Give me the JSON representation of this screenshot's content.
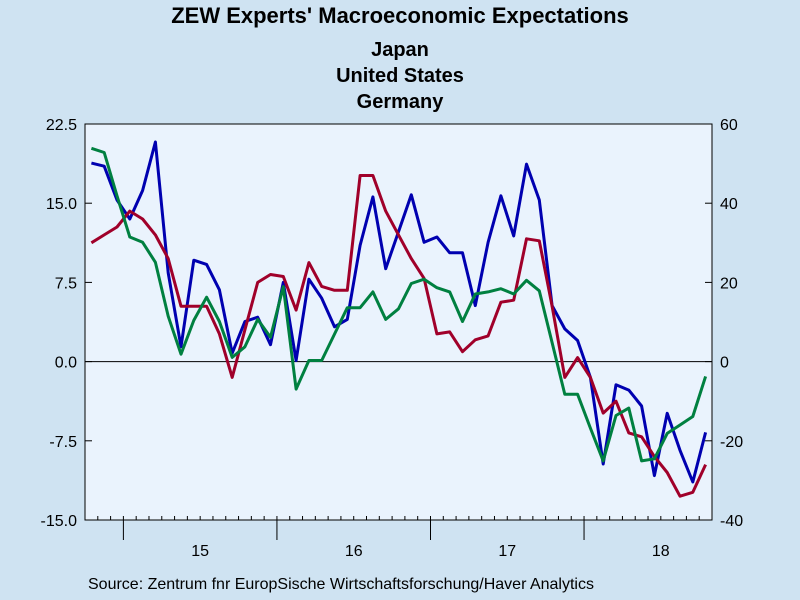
{
  "chart_data": {
    "type": "line",
    "title": "ZEW Experts' Macroeconomic Expectations",
    "source": "Source:  Zentrum fnr EuropSische Wirtschaftsforschung/Haver Analytics",
    "x_tick_labels": [
      "15",
      "16",
      "17",
      "18"
    ],
    "y_left": {
      "ticks": [
        "22.5",
        "15.0",
        "7.5",
        "0.0",
        "-7.5",
        "-15.0"
      ],
      "range": [
        -15,
        22.5
      ]
    },
    "y_right": {
      "ticks": [
        "60",
        "40",
        "20",
        "0",
        "-20",
        "-40"
      ],
      "range": [
        -40,
        60
      ]
    },
    "months_start": "2014-10",
    "series": [
      {
        "name": "Japan",
        "color": "#0000b0",
        "axis": "left",
        "values": [
          18.8,
          18.5,
          15.3,
          13.5,
          16.2,
          20.8,
          8.4,
          1.4,
          9.6,
          9.2,
          6.8,
          0.8,
          3.8,
          4.2,
          1.6,
          7.5,
          0.1,
          7.8,
          6.0,
          3.3,
          4.0,
          11.0,
          15.6,
          8.8,
          12.3,
          15.8,
          11.3,
          11.8,
          10.3,
          10.3,
          5.3,
          11.3,
          15.7,
          11.9,
          18.7,
          15.3,
          5.3,
          3.1,
          2.0,
          -1.5,
          -9.7,
          -2.2,
          -2.7,
          -4.2,
          -10.8,
          -4.9,
          -8.4,
          -11.4,
          -6.7
        ]
      },
      {
        "name": "United States",
        "color": "#a0002a",
        "axis": "right",
        "values": [
          30,
          32,
          34,
          38,
          36,
          32,
          26,
          14,
          14,
          14,
          7,
          -4,
          8,
          20,
          22,
          21.5,
          13,
          25,
          19,
          18,
          18,
          47,
          47,
          38,
          32,
          26,
          21,
          7,
          7.5,
          2.5,
          5.5,
          6.5,
          15,
          15.5,
          31,
          30.5,
          14,
          -4,
          1,
          -4,
          -13,
          -10,
          -18,
          -19,
          -24,
          -28,
          -34,
          -33,
          -26
        ]
      },
      {
        "name": "Germany",
        "color": "#008040",
        "axis": "left",
        "values": [
          20.2,
          19.8,
          15.7,
          11.8,
          11.3,
          9.4,
          4.3,
          0.7,
          3.9,
          6.1,
          3.8,
          0.4,
          1.4,
          4.0,
          2.3,
          7.1,
          -2.6,
          0.1,
          0.1,
          2.6,
          5.1,
          5.1,
          6.6,
          4.0,
          5.0,
          7.4,
          7.8,
          7.0,
          6.6,
          3.8,
          6.4,
          6.6,
          6.9,
          6.4,
          7.7,
          6.7,
          1.8,
          -3.1,
          -3.1,
          -6.3,
          -9.4,
          -5.1,
          -4.4,
          -9.4,
          -9.2,
          -6.8,
          -6.0,
          -5.2,
          -1.4
        ]
      }
    ]
  }
}
